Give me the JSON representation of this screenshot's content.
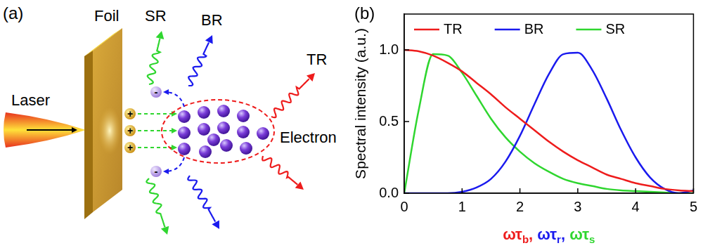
{
  "chart_data": {
    "type": "line",
    "title": "(b)",
    "xlabel": {
      "parts": [
        {
          "base": "ωτ",
          "sub": "b",
          "color": "#ee1c1c"
        },
        {
          "base": "ωτ",
          "sub": "r",
          "color": "#1a1aee"
        },
        {
          "base": "ωτ",
          "sub": "s",
          "color": "#2fd62f"
        }
      ],
      "separator": ", "
    },
    "ylabel": "Spectral intensity (a.u.)",
    "x": [
      0,
      0.25,
      0.5,
      0.75,
      1,
      1.25,
      1.5,
      1.75,
      2,
      2.25,
      2.5,
      2.75,
      3,
      3.25,
      3.5,
      3.75,
      4,
      4.25,
      4.5,
      4.75,
      5
    ],
    "series": [
      {
        "name": "TR",
        "color": "#ee1c1c",
        "values": [
          1.0,
          0.99,
          0.96,
          0.91,
          0.85,
          0.77,
          0.69,
          0.6,
          0.52,
          0.44,
          0.36,
          0.29,
          0.23,
          0.18,
          0.13,
          0.1,
          0.07,
          0.05,
          0.03,
          0.02,
          0.015
        ]
      },
      {
        "name": "BR",
        "color": "#1a1aee",
        "values": [
          0,
          0,
          0,
          0,
          0.01,
          0.04,
          0.1,
          0.22,
          0.4,
          0.62,
          0.83,
          0.97,
          0.98,
          0.86,
          0.66,
          0.44,
          0.25,
          0.11,
          0.03,
          0.0,
          0.02
        ]
      },
      {
        "name": "SR",
        "color": "#2fd62f",
        "values": [
          0,
          0.58,
          0.97,
          0.96,
          0.84,
          0.68,
          0.52,
          0.39,
          0.29,
          0.21,
          0.15,
          0.1,
          0.07,
          0.05,
          0.03,
          0.02,
          0.015,
          0.01,
          0.005,
          0,
          0
        ]
      }
    ],
    "xlim": [
      0,
      5
    ],
    "xticks": [
      0,
      1,
      2,
      3,
      4,
      5
    ],
    "ylim": [
      0,
      1.25
    ],
    "yticks": [
      {
        "value": 0,
        "label": "0.0"
      },
      {
        "value": 0.5,
        "label": "0.5"
      },
      {
        "value": 1,
        "label": "1.0"
      }
    ],
    "grid": false,
    "legend": "top"
  },
  "diagram": {
    "panel_label": "(a)",
    "foil": "Foil",
    "laser": "Laser",
    "electron": "Electron",
    "ion_sign": "+",
    "electron_sign": "-",
    "radiation": [
      {
        "label": "SR",
        "color": "#2fd62f"
      },
      {
        "label": "BR",
        "color": "#1a1aee"
      },
      {
        "label": "TR",
        "color": "#ee1c1c"
      }
    ]
  }
}
